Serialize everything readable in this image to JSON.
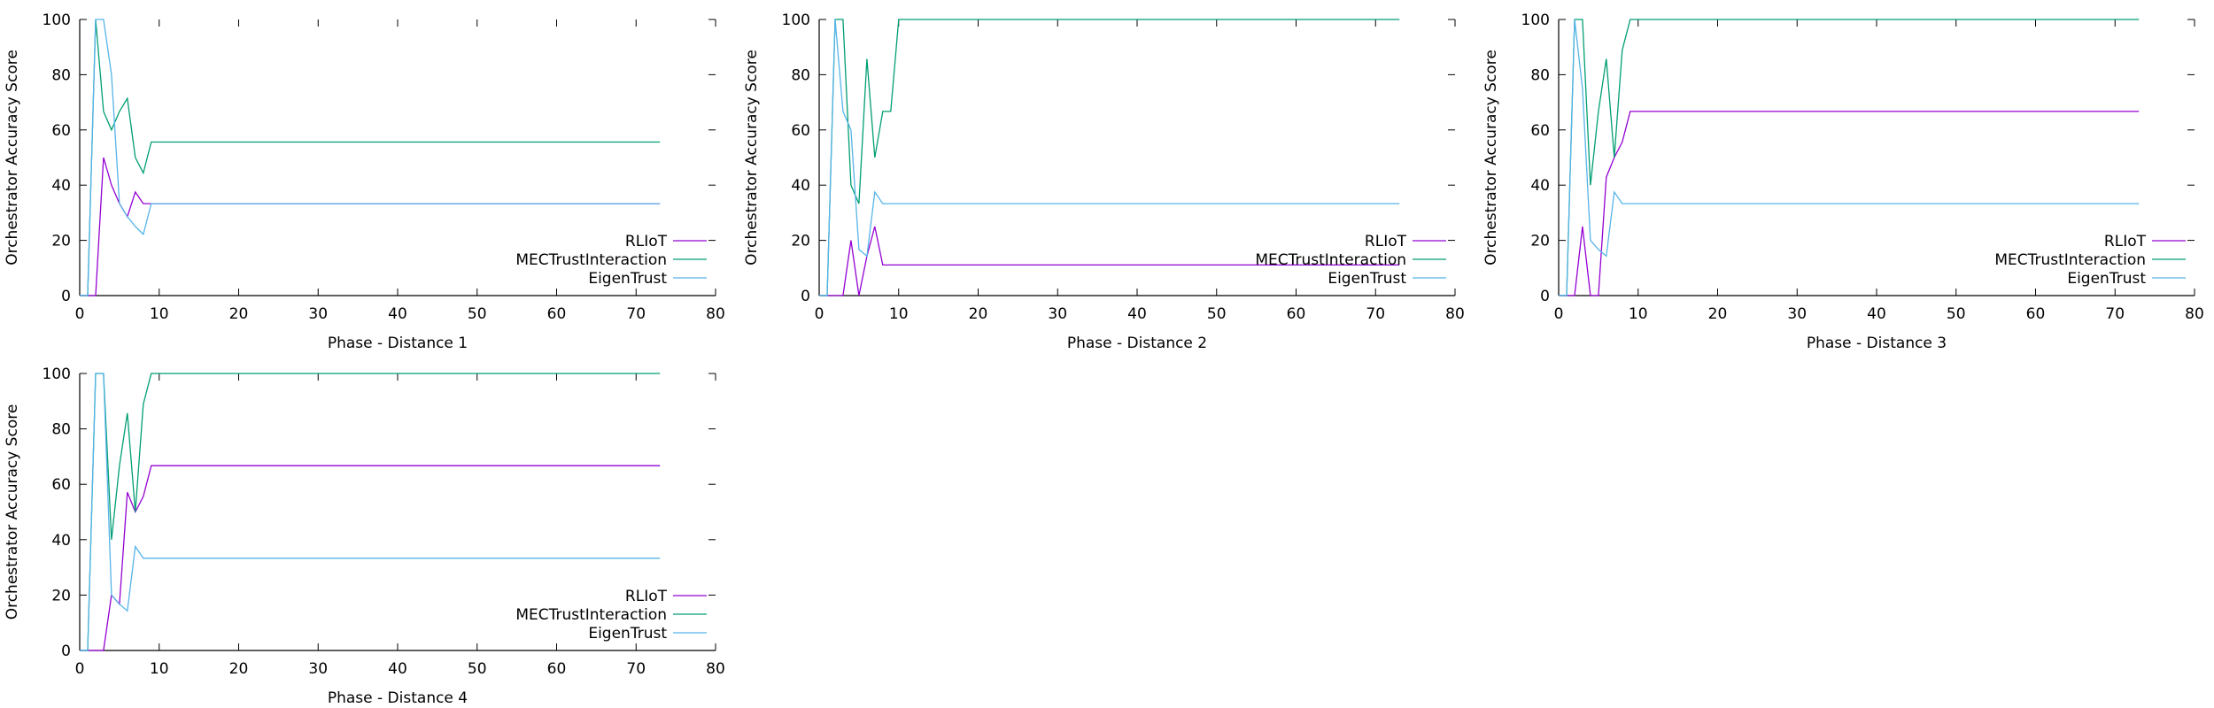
{
  "colors": {
    "RLIoT": "#9400d3",
    "MECTrustInteraction": "#009e73",
    "EigenTrust": "#56b4e9",
    "axis": "#000000"
  },
  "chart_data": [
    {
      "type": "line",
      "xlabel": "Phase - Distance 1",
      "ylabel": "Orchestrator Accuracy Score",
      "xlim": [
        0,
        80
      ],
      "ylim": [
        0,
        100
      ],
      "xticks": [
        0,
        10,
        20,
        30,
        40,
        50,
        60,
        70,
        80
      ],
      "yticks": [
        0,
        20,
        40,
        60,
        80,
        100
      ],
      "grid": false,
      "legend_position": "bottom-right",
      "series": [
        {
          "name": "RLIoT",
          "color_key": "RLIoT",
          "x": [
            0,
            1,
            2,
            3,
            4,
            5,
            6,
            7,
            8,
            9,
            73
          ],
          "y": [
            0,
            0,
            0,
            50,
            40,
            33.3,
            28.6,
            37.5,
            33.3,
            33.3,
            33.3
          ]
        },
        {
          "name": "MECTrustInteraction",
          "color_key": "MECTrustInteraction",
          "x": [
            0,
            1,
            2,
            3,
            4,
            5,
            6,
            7,
            8,
            9,
            73
          ],
          "y": [
            0,
            0,
            100,
            66.7,
            60,
            66.7,
            71.4,
            50,
            44.4,
            55.6,
            55.6
          ]
        },
        {
          "name": "EigenTrust",
          "color_key": "EigenTrust",
          "x": [
            0,
            1,
            2,
            3,
            4,
            5,
            6,
            7,
            8,
            9,
            73
          ],
          "y": [
            0,
            0,
            100,
            100,
            80,
            33.3,
            28.6,
            25,
            22.2,
            33.3,
            33.3
          ]
        }
      ]
    },
    {
      "type": "line",
      "xlabel": "Phase - Distance 2",
      "ylabel": "Orchestrator Accuracy Score",
      "xlim": [
        0,
        80
      ],
      "ylim": [
        0,
        100
      ],
      "xticks": [
        0,
        10,
        20,
        30,
        40,
        50,
        60,
        70,
        80
      ],
      "yticks": [
        0,
        20,
        40,
        60,
        80,
        100
      ],
      "grid": false,
      "legend_position": "bottom-right",
      "series": [
        {
          "name": "RLIoT",
          "color_key": "RLIoT",
          "x": [
            0,
            1,
            2,
            3,
            4,
            5,
            6,
            7,
            8,
            9,
            73
          ],
          "y": [
            0,
            0,
            0,
            0,
            20,
            0,
            14.3,
            25,
            11.1,
            11.1,
            11.1
          ]
        },
        {
          "name": "MECTrustInteraction",
          "color_key": "MECTrustInteraction",
          "x": [
            0,
            1,
            2,
            3,
            4,
            5,
            6,
            7,
            8,
            9,
            10,
            73
          ],
          "y": [
            0,
            0,
            100,
            100,
            40,
            33.3,
            85.7,
            50,
            66.7,
            66.7,
            100,
            100
          ]
        },
        {
          "name": "EigenTrust",
          "color_key": "EigenTrust",
          "x": [
            0,
            1,
            2,
            3,
            4,
            5,
            6,
            7,
            8,
            9,
            73
          ],
          "y": [
            0,
            0,
            100,
            66.7,
            60,
            16.7,
            14.3,
            37.5,
            33.3,
            33.3,
            33.3
          ]
        }
      ]
    },
    {
      "type": "line",
      "xlabel": "Phase - Distance 3",
      "ylabel": "Orchestrator Accuracy Score",
      "xlim": [
        0,
        80
      ],
      "ylim": [
        0,
        100
      ],
      "xticks": [
        0,
        10,
        20,
        30,
        40,
        50,
        60,
        70,
        80
      ],
      "yticks": [
        0,
        20,
        40,
        60,
        80,
        100
      ],
      "grid": false,
      "legend_position": "bottom-right",
      "series": [
        {
          "name": "RLIoT",
          "color_key": "RLIoT",
          "x": [
            0,
            1,
            2,
            3,
            4,
            5,
            6,
            7,
            8,
            9,
            73
          ],
          "y": [
            0,
            0,
            0,
            25,
            0,
            0,
            42.9,
            50,
            55.6,
            66.7,
            66.7
          ]
        },
        {
          "name": "MECTrustInteraction",
          "color_key": "MECTrustInteraction",
          "x": [
            0,
            1,
            2,
            3,
            4,
            5,
            6,
            7,
            8,
            9,
            73
          ],
          "y": [
            0,
            0,
            100,
            100,
            40,
            66.7,
            85.7,
            50,
            88.9,
            100,
            100
          ]
        },
        {
          "name": "EigenTrust",
          "color_key": "EigenTrust",
          "x": [
            0,
            1,
            2,
            3,
            4,
            5,
            6,
            7,
            8,
            9,
            73
          ],
          "y": [
            0,
            0,
            100,
            75,
            20,
            16.7,
            14.3,
            37.5,
            33.3,
            33.3,
            33.3
          ]
        }
      ]
    },
    {
      "type": "line",
      "xlabel": "Phase - Distance 4",
      "ylabel": "Orchestrator Accuracy Score",
      "xlim": [
        0,
        80
      ],
      "ylim": [
        0,
        100
      ],
      "xticks": [
        0,
        10,
        20,
        30,
        40,
        50,
        60,
        70,
        80
      ],
      "yticks": [
        0,
        20,
        40,
        60,
        80,
        100
      ],
      "grid": false,
      "legend_position": "bottom-right",
      "series": [
        {
          "name": "RLIoT",
          "color_key": "RLIoT",
          "x": [
            0,
            1,
            2,
            3,
            4,
            5,
            6,
            7,
            8,
            9,
            73
          ],
          "y": [
            0,
            0,
            0,
            0,
            20,
            16.7,
            57.1,
            50,
            55.6,
            66.7,
            66.7
          ]
        },
        {
          "name": "MECTrustInteraction",
          "color_key": "MECTrustInteraction",
          "x": [
            0,
            1,
            2,
            3,
            4,
            5,
            6,
            7,
            8,
            9,
            73
          ],
          "y": [
            0,
            0,
            100,
            100,
            40,
            66.7,
            85.7,
            50,
            88.9,
            100,
            100
          ]
        },
        {
          "name": "EigenTrust",
          "color_key": "EigenTrust",
          "x": [
            0,
            1,
            2,
            3,
            4,
            5,
            6,
            7,
            8,
            9,
            73
          ],
          "y": [
            0,
            0,
            100,
            100,
            20,
            16.7,
            14.3,
            37.5,
            33.3,
            33.3,
            33.3
          ]
        }
      ]
    }
  ]
}
